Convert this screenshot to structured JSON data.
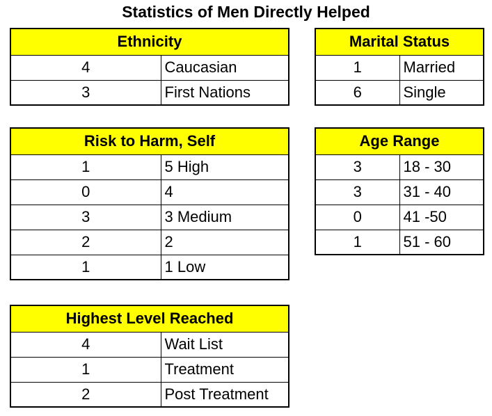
{
  "title": "Statistics of Men Directly Helped",
  "colors": {
    "header_bg": "#ffff00",
    "border": "#000000",
    "text": "#000000",
    "background": "#ffffff"
  },
  "tables": [
    {
      "id": "ethnicity",
      "header": "Ethnicity",
      "rows": [
        [
          "4",
          "Caucasian"
        ],
        [
          "3",
          "First Nations"
        ]
      ]
    },
    {
      "id": "marital-status",
      "header": "Marital Status",
      "rows": [
        [
          "1",
          "Married"
        ],
        [
          "6",
          "Single"
        ]
      ]
    },
    {
      "id": "risk-to-harm-self",
      "header": "Risk to Harm, Self",
      "rows": [
        [
          "1",
          "5 High"
        ],
        [
          "0",
          "4"
        ],
        [
          "3",
          "3 Medium"
        ],
        [
          "2",
          "2"
        ],
        [
          "1",
          "1 Low"
        ]
      ]
    },
    {
      "id": "age-range",
      "header": "Age Range",
      "rows": [
        [
          "3",
          "18 - 30"
        ],
        [
          "3",
          "31 - 40"
        ],
        [
          "0",
          "41 -50"
        ],
        [
          "1",
          "51 - 60"
        ]
      ]
    },
    {
      "id": "highest-level-reached",
      "header": "Highest Level Reached",
      "rows": [
        [
          "4",
          "Wait List"
        ],
        [
          "1",
          "Treatment"
        ],
        [
          "2",
          "Post Treatment"
        ]
      ]
    }
  ]
}
